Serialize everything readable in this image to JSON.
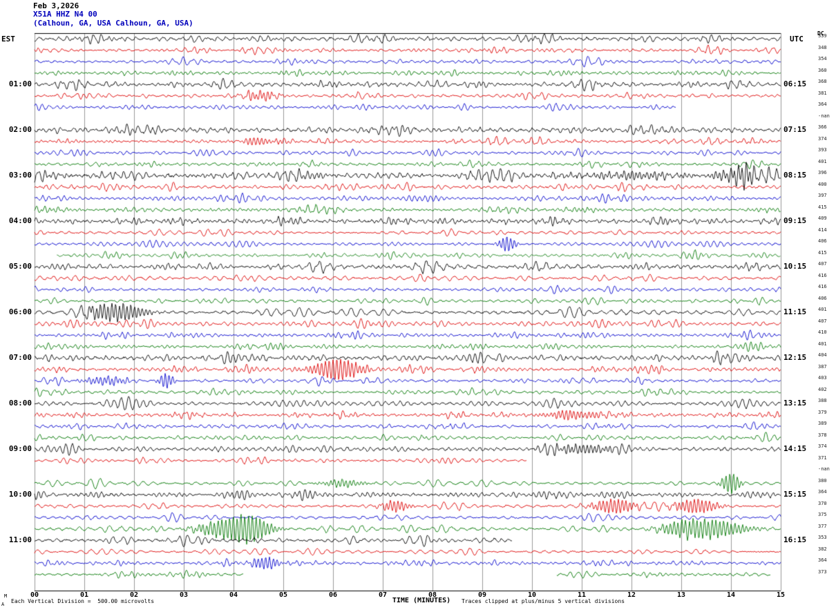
{
  "palette": {
    "black": "#000000",
    "red": "#dd0000",
    "blue": "#0000cc",
    "green": "#007700",
    "grid": "#999999",
    "axis": "#000000",
    "header_accent": "#0000bb"
  },
  "chart_data": {
    "type": "line",
    "subtype": "helicorder-seismogram",
    "date": "Feb 3,2026",
    "station": "X51A HHZ N4 00",
    "location": "(Calhoun, GA, USA Calhoun, GA, USA)",
    "left_axis": "EST",
    "right_axis": "UTC",
    "dc_header": "DC",
    "xlabel": "TIME (MINUTES)",
    "x_range": [
      0,
      15
    ],
    "x_ticks": [
      "00",
      "01",
      "02",
      "03",
      "04",
      "05",
      "06",
      "07",
      "08",
      "09",
      "10",
      "11",
      "12",
      "13",
      "14",
      "15"
    ],
    "minutes_per_line": 15,
    "lines_per_hour": 4,
    "trace_color_cycle": [
      "black",
      "red",
      "blue",
      "green"
    ],
    "units": "microvolts",
    "microvolts_per_division": 500.0,
    "clip_divisions": 5,
    "rows": [
      {
        "dc": "339",
        "ll": "",
        "rl": "",
        "amp": 4
      },
      {
        "dc": "348",
        "ll": "",
        "rl": "",
        "amp": 3
      },
      {
        "dc": "354",
        "ll": "",
        "rl": "",
        "amp": 3
      },
      {
        "dc": "360",
        "ll": "",
        "rl": "",
        "amp": 3
      },
      {
        "dc": "368",
        "ll": "01:00",
        "rl": "06:15",
        "amp": 4
      },
      {
        "dc": "381",
        "ll": "",
        "rl": "",
        "amp": 3,
        "ev": [
          {
            "m": 4.55,
            "a": 6,
            "w": 0.25
          }
        ]
      },
      {
        "dc": "364",
        "ll": "",
        "rl": "",
        "amp": 3,
        "seg": [
          [
            0,
            12.9
          ]
        ]
      },
      {
        "dc": "-nan",
        "ll": "",
        "rl": "",
        "amp": 0,
        "seg": []
      },
      {
        "dc": "366",
        "ll": "02:00",
        "rl": "07:15",
        "amp": 4.5
      },
      {
        "dc": "374",
        "ll": "",
        "rl": "",
        "amp": 3,
        "ev": [
          {
            "m": 4.5,
            "a": 5,
            "w": 0.3
          }
        ]
      },
      {
        "dc": "393",
        "ll": "",
        "rl": "",
        "amp": 3
      },
      {
        "dc": "401",
        "ll": "",
        "rl": "",
        "amp": 3
      },
      {
        "dc": "396",
        "ll": "03:00",
        "rl": "08:15",
        "amp": 5.5,
        "ev": [
          {
            "m": 14.2,
            "a": 11,
            "w": 0.35
          },
          {
            "m": 12.1,
            "a": 5,
            "w": 0.6
          }
        ]
      },
      {
        "dc": "400",
        "ll": "",
        "rl": "",
        "amp": 3.5
      },
      {
        "dc": "397",
        "ll": "",
        "rl": "",
        "amp": 3.5
      },
      {
        "dc": "415",
        "ll": "",
        "rl": "",
        "amp": 3
      },
      {
        "dc": "409",
        "ll": "04:00",
        "rl": "09:15",
        "amp": 4
      },
      {
        "dc": "414",
        "ll": "",
        "rl": "",
        "amp": 3
      },
      {
        "dc": "406",
        "ll": "",
        "rl": "",
        "amp": 3,
        "ev": [
          {
            "m": 9.5,
            "a": 11,
            "w": 0.12
          }
        ]
      },
      {
        "dc": "415",
        "ll": "",
        "rl": "",
        "amp": 3,
        "seg": [
          [
            0.45,
            15
          ]
        ]
      },
      {
        "dc": "407",
        "ll": "05:00",
        "rl": "10:15",
        "amp": 4.5
      },
      {
        "dc": "416",
        "ll": "",
        "rl": "",
        "amp": 3.5
      },
      {
        "dc": "416",
        "ll": "",
        "rl": "",
        "amp": 3
      },
      {
        "dc": "406",
        "ll": "",
        "rl": "",
        "amp": 3
      },
      {
        "dc": "401",
        "ll": "06:00",
        "rl": "11:15",
        "amp": 4,
        "ev": [
          {
            "m": 1.35,
            "a": 8,
            "w": 0.25
          },
          {
            "m": 1.85,
            "a": 10,
            "w": 0.3
          }
        ]
      },
      {
        "dc": "407",
        "ll": "",
        "rl": "",
        "amp": 3.5
      },
      {
        "dc": "410",
        "ll": "",
        "rl": "",
        "amp": 3
      },
      {
        "dc": "401",
        "ll": "",
        "rl": "",
        "amp": 3
      },
      {
        "dc": "404",
        "ll": "07:00",
        "rl": "12:15",
        "amp": 4.5
      },
      {
        "dc": "387",
        "ll": "",
        "rl": "",
        "amp": 3.5,
        "ev": [
          {
            "m": 6.1,
            "a": 15,
            "w": 0.35
          }
        ]
      },
      {
        "dc": "403",
        "ll": "",
        "rl": "",
        "amp": 3,
        "ev": [
          {
            "m": 1.45,
            "a": 6,
            "w": 0.3
          },
          {
            "m": 2.65,
            "a": 11,
            "w": 0.1
          }
        ]
      },
      {
        "dc": "402",
        "ll": "",
        "rl": "",
        "amp": 3
      },
      {
        "dc": "388",
        "ll": "08:00",
        "rl": "13:15",
        "amp": 4
      },
      {
        "dc": "379",
        "ll": "",
        "rl": "",
        "amp": 3,
        "ev": [
          {
            "m": 10.8,
            "a": 6,
            "w": 0.4
          }
        ]
      },
      {
        "dc": "389",
        "ll": "",
        "rl": "",
        "amp": 3
      },
      {
        "dc": "378",
        "ll": "",
        "rl": "",
        "amp": 3
      },
      {
        "dc": "374",
        "ll": "09:00",
        "rl": "14:15",
        "amp": 4,
        "ev": [
          {
            "m": 11.0,
            "a": 6,
            "w": 0.5
          }
        ]
      },
      {
        "dc": "371",
        "ll": "",
        "rl": "",
        "amp": 3,
        "seg": [
          [
            0,
            9.9
          ]
        ]
      },
      {
        "dc": "-nan",
        "ll": "",
        "rl": "",
        "amp": 0,
        "seg": []
      },
      {
        "dc": "380",
        "ll": "",
        "rl": "",
        "amp": 3,
        "ev": [
          {
            "m": 14.0,
            "a": 15,
            "w": 0.13
          },
          {
            "m": 6.2,
            "a": 5,
            "w": 0.3
          }
        ]
      },
      {
        "dc": "364",
        "ll": "10:00",
        "rl": "15:15",
        "amp": 4
      },
      {
        "dc": "370",
        "ll": "",
        "rl": "",
        "amp": 3,
        "ev": [
          {
            "m": 7.25,
            "a": 8,
            "w": 0.2
          },
          {
            "m": 11.65,
            "a": 10,
            "w": 0.3
          },
          {
            "m": 13.3,
            "a": 10,
            "w": 0.3
          }
        ]
      },
      {
        "dc": "375",
        "ll": "",
        "rl": "",
        "amp": 3
      },
      {
        "dc": "377",
        "ll": "",
        "rl": "",
        "amp": 3.5,
        "ev": [
          {
            "m": 3.95,
            "a": 14,
            "w": 0.45
          },
          {
            "m": 4.4,
            "a": 10,
            "w": 0.25
          },
          {
            "m": 13.6,
            "a": 12,
            "w": 0.5
          },
          {
            "m": 12.95,
            "a": 6,
            "w": 0.3
          }
        ]
      },
      {
        "dc": "353",
        "ll": "11:00",
        "rl": "16:15",
        "amp": 4,
        "seg": [
          [
            0,
            9.6
          ]
        ]
      },
      {
        "dc": "382",
        "ll": "",
        "rl": "",
        "amp": 3
      },
      {
        "dc": "364",
        "ll": "",
        "rl": "",
        "amp": 3,
        "ev": [
          {
            "m": 4.65,
            "a": 9,
            "w": 0.2
          }
        ]
      },
      {
        "dc": "373",
        "ll": "",
        "rl": "",
        "amp": 3,
        "seg": [
          [
            0,
            4.2
          ],
          [
            10.5,
            14.8
          ]
        ]
      }
    ]
  },
  "footer": {
    "scale_note": "Each Vertical Division =  500.00 microvolts",
    "clip_note": "Traces clipped at plus/minus 5 vertical divisions",
    "mark_top": "M",
    "mark_bottom": "A"
  }
}
